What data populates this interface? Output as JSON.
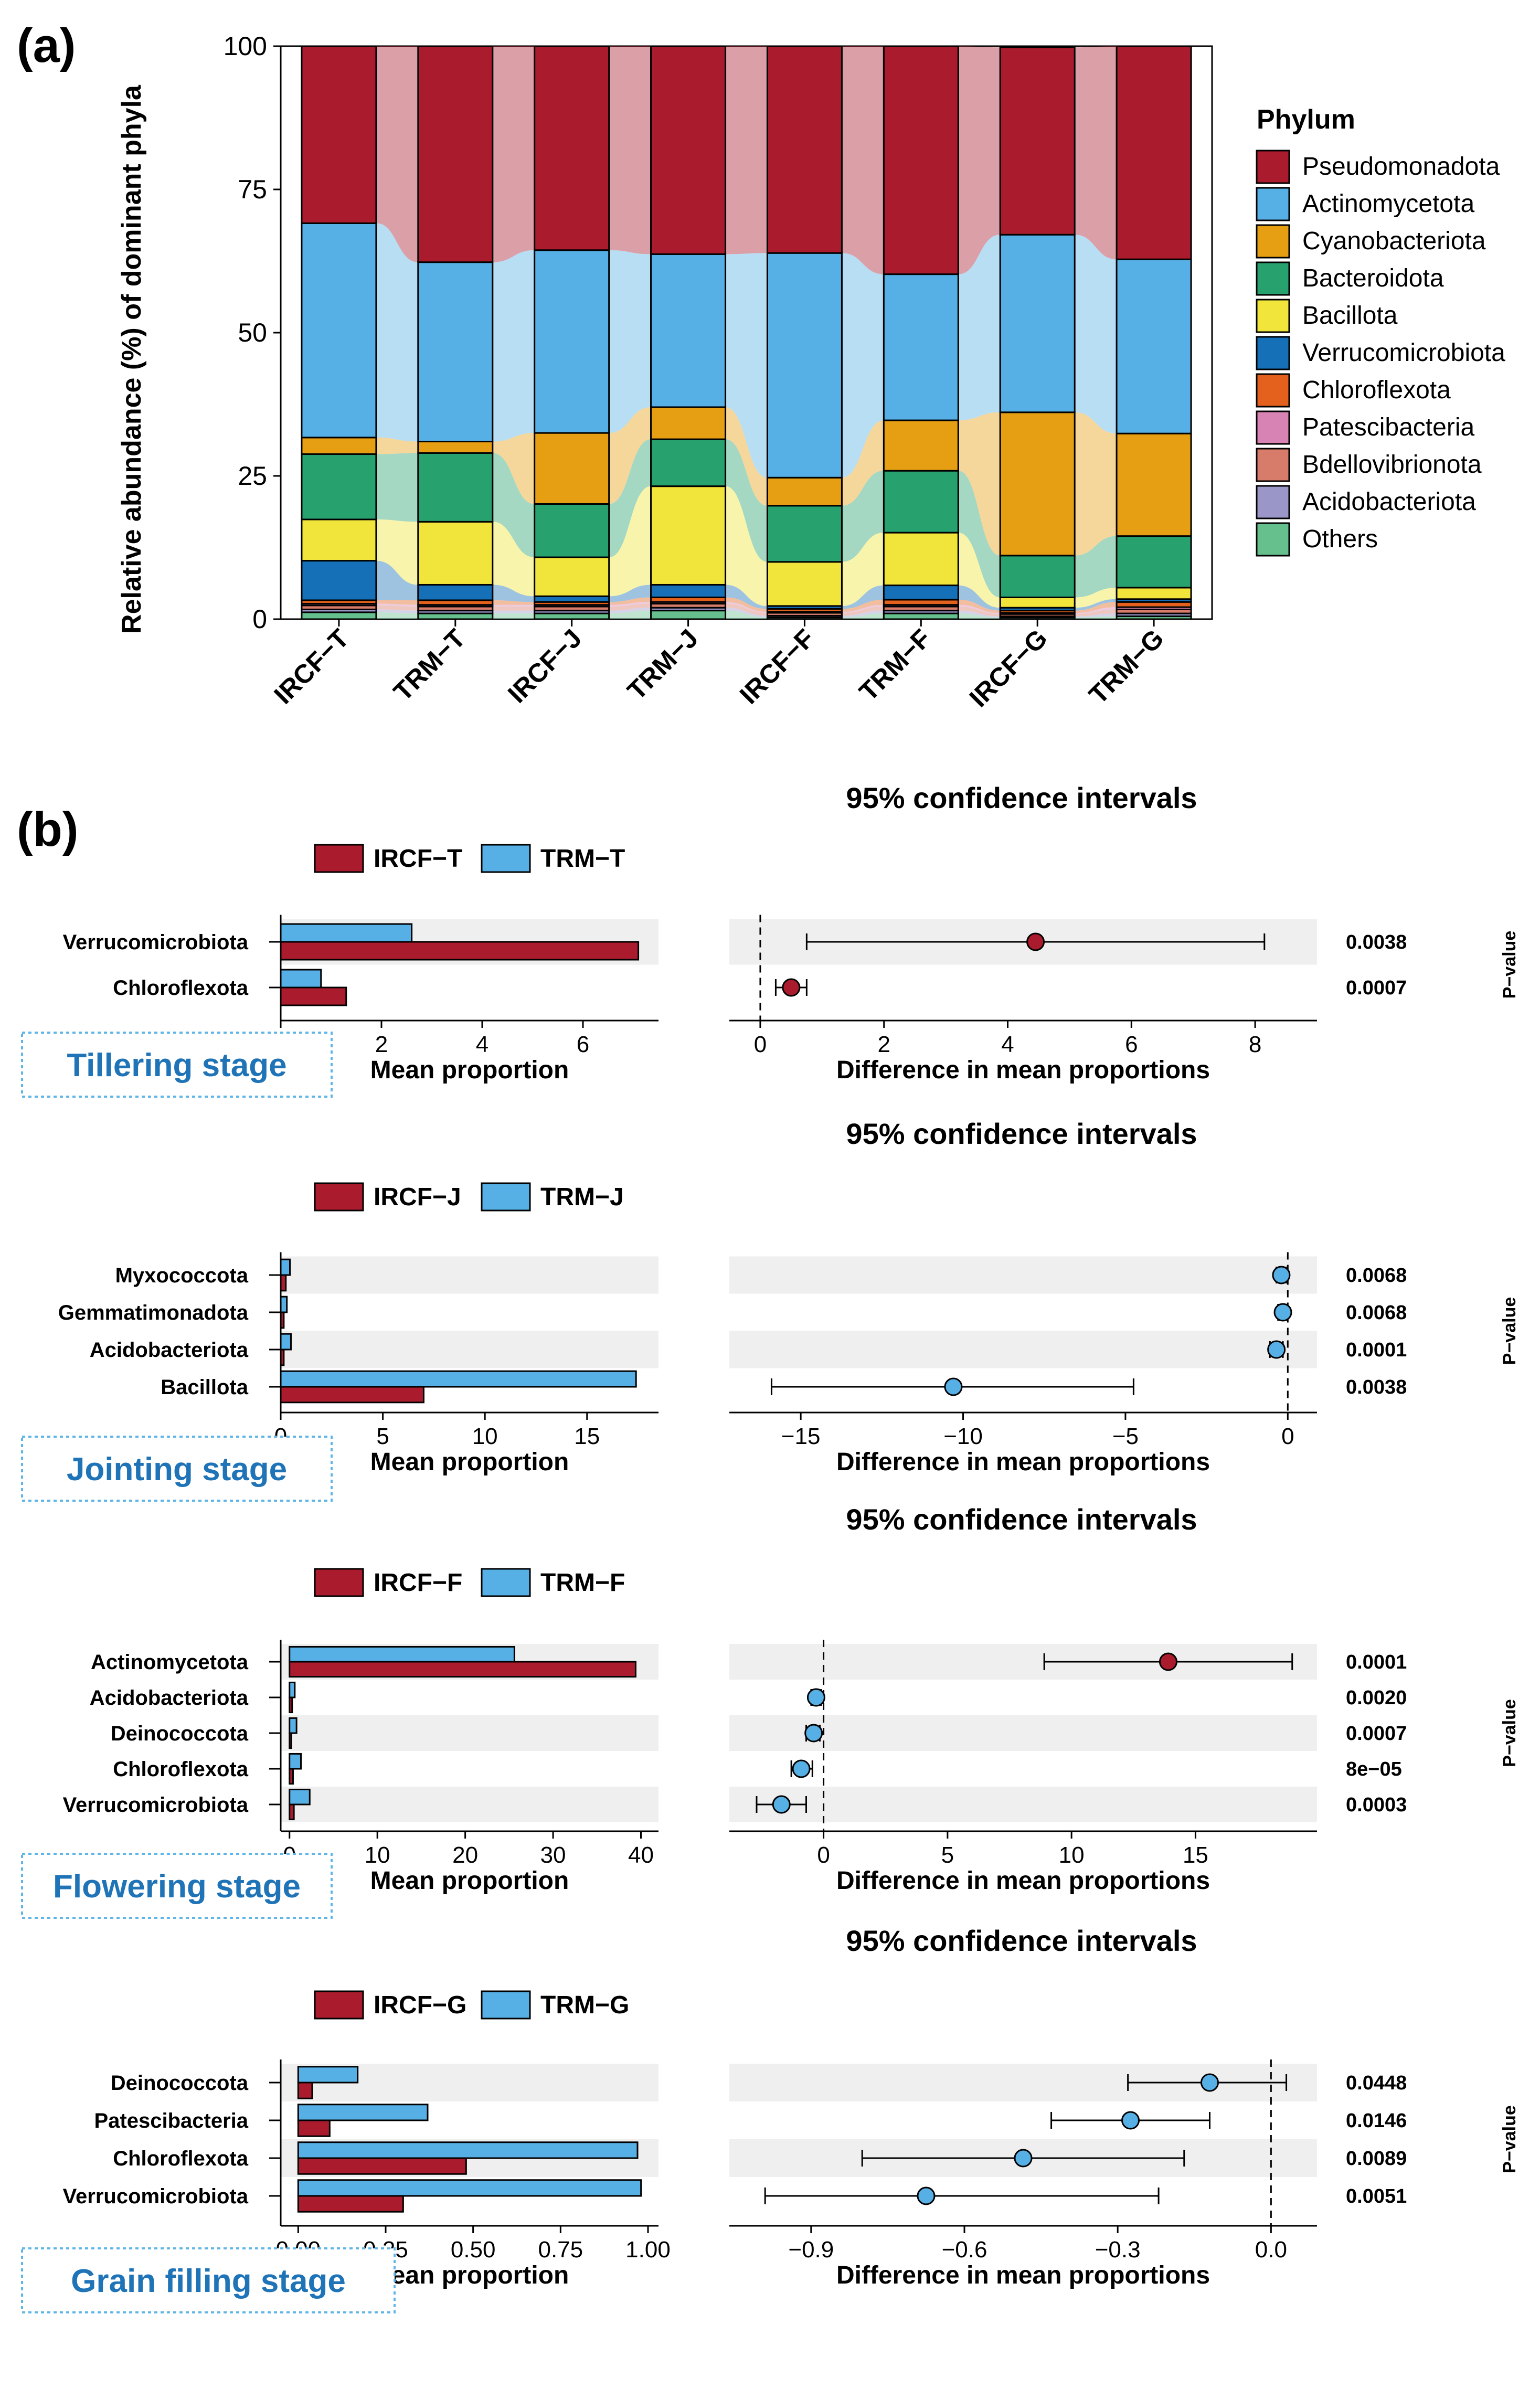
{
  "panel_a": {
    "label": "(a)",
    "legend_title": "Phylum",
    "chart_data": {
      "type": "bar",
      "stacked": true,
      "ylabel": "Relative abundance (%) of dominant phyla",
      "ylim": [
        0,
        100
      ],
      "yticks": [
        "0",
        "25",
        "50",
        "75",
        "100"
      ],
      "categories": [
        "IRCF−T",
        "TRM−T",
        "IRCF−J",
        "TRM−J",
        "IRCF−F",
        "TRM−F",
        "IRCF−G",
        "TRM−G"
      ],
      "series": [
        {
          "name": "Others",
          "color": "#66c08e",
          "values": [
            1.2,
            1.0,
            1.0,
            1.5,
            0.3,
            1.0,
            0.3,
            0.5
          ]
        },
        {
          "name": "Acidobacteriota",
          "color": "#9a96c8",
          "values": [
            0.5,
            0.5,
            0.5,
            0.5,
            0.3,
            0.5,
            0.2,
            0.5
          ]
        },
        {
          "name": "Bdellovibrionota",
          "color": "#d77b6a",
          "values": [
            0.7,
            0.7,
            0.7,
            0.7,
            0.5,
            0.7,
            0.4,
            0.7
          ]
        },
        {
          "name": "Patescibacteria",
          "color": "#d783b3",
          "values": [
            0.3,
            0.3,
            0.3,
            0.3,
            0.2,
            0.3,
            0.2,
            0.4
          ]
        },
        {
          "name": "Chloroflexota",
          "color": "#e3611c",
          "values": [
            0.6,
            0.8,
            0.5,
            0.8,
            0.5,
            0.9,
            0.4,
            0.9
          ]
        },
        {
          "name": "Verrucomicrobiota",
          "color": "#1670b7",
          "values": [
            6.9,
            2.7,
            1.0,
            2.2,
            0.5,
            2.5,
            0.5,
            0.5
          ]
        },
        {
          "name": "Bacillota",
          "color": "#f1e43a",
          "values": [
            7.2,
            11.0,
            6.8,
            17.2,
            7.7,
            9.2,
            1.8,
            2.0
          ]
        },
        {
          "name": "Bacteroidota",
          "color": "#27a16e",
          "values": [
            11.4,
            12.0,
            9.3,
            8.2,
            9.8,
            10.8,
            7.3,
            9.0
          ]
        },
        {
          "name": "Cyanobacteriota",
          "color": "#e69f13",
          "values": [
            2.9,
            2.0,
            12.4,
            5.6,
            4.9,
            8.8,
            25.0,
            17.9
          ]
        },
        {
          "name": "Actinomycetota",
          "color": "#56b0e5",
          "values": [
            37.4,
            31.3,
            31.9,
            26.7,
            39.2,
            25.5,
            31.0,
            30.4
          ]
        },
        {
          "name": "Pseudomonadota",
          "color": "#aa1c2d",
          "values": [
            30.9,
            37.7,
            35.6,
            36.3,
            36.1,
            39.8,
            32.7,
            37.2
          ]
        }
      ],
      "legend_order": [
        "Pseudomonadota",
        "Actinomycetota",
        "Cyanobacteriota",
        "Bacteroidota",
        "Bacillota",
        "Verrucomicrobiota",
        "Chloroflexota",
        "Patescibacteria",
        "Bdellovibrionota",
        "Acidobacteriota",
        "Others"
      ],
      "legend_position": "right"
    }
  },
  "panel_b": {
    "label": "(b)",
    "ci_title": "95% confidence intervals",
    "xlabel_left": "Mean proportion",
    "xlabel_right": "Difference in mean proportions",
    "pvalue_label": "P−value",
    "colors": {
      "group1": "#aa1c2d",
      "group2": "#56b0e5",
      "stage_text": "#1f73b7",
      "stage_border": "#5fb6e6"
    },
    "chart_data": [
      {
        "type": "bar",
        "stage": "Tillering stage",
        "legend": [
          "IRCF−T",
          "TRM−T"
        ],
        "categories": [
          "Verrucomicrobiota",
          "Chloroflexota"
        ],
        "series": [
          {
            "name": "IRCF−T",
            "values": [
              7.1,
              1.3
            ]
          },
          {
            "name": "TRM−T",
            "values": [
              2.6,
              0.8
            ]
          }
        ],
        "xlim_left": [
          0,
          7.5
        ],
        "xticks_left": [
          0,
          2,
          4,
          6
        ],
        "xtick_labels_left": [
          "0",
          "2",
          "4",
          "6"
        ],
        "diff": [
          4.45,
          0.5
        ],
        "ci": [
          [
            0.75,
            8.15
          ],
          [
            0.25,
            0.75
          ]
        ],
        "xlim_right": [
          -0.5,
          9.0
        ],
        "xticks_right": [
          0,
          2,
          4,
          6,
          8
        ],
        "xtick_labels_right": [
          "0",
          "2",
          "4",
          "6",
          "8"
        ],
        "pvalues": [
          "0.0038",
          "0.0007"
        ]
      },
      {
        "type": "bar",
        "stage": "Jointing stage",
        "legend": [
          "IRCF−J",
          "TRM−J"
        ],
        "categories": [
          "Myxococcota",
          "Gemmatimonadota",
          "Acidobacteriota",
          "Bacillota"
        ],
        "series": [
          {
            "name": "IRCF−J",
            "values": [
              0.25,
              0.15,
              0.15,
              7.0
            ]
          },
          {
            "name": "TRM−J",
            "values": [
              0.45,
              0.3,
              0.5,
              17.4
            ]
          }
        ],
        "xlim_left": [
          0,
          18.5
        ],
        "xticks_left": [
          0,
          5,
          10,
          15
        ],
        "xtick_labels_left": [
          "0",
          "5",
          "10",
          "15"
        ],
        "diff": [
          -0.2,
          -0.15,
          -0.35,
          -10.3
        ],
        "ci": [
          [
            -0.35,
            -0.05
          ],
          [
            -0.3,
            -0.05
          ],
          [
            -0.55,
            -0.15
          ],
          [
            -15.9,
            -4.75
          ]
        ],
        "xlim_right": [
          -17.2,
          0.9
        ],
        "xticks_right": [
          -15,
          -10,
          -5,
          0
        ],
        "xtick_labels_right": [
          "−15",
          "−10",
          "−5",
          "0"
        ],
        "pvalues": [
          "0.0068",
          "0.0068",
          "0.0001",
          "0.0038"
        ]
      },
      {
        "type": "bar",
        "stage": "Flowering stage",
        "legend": [
          "IRCF−F",
          "TRM−F"
        ],
        "categories": [
          "Actinomycetota",
          "Acidobacteriota",
          "Deinococcota",
          "Chloroflexota",
          "Verrucomicrobiota"
        ],
        "series": [
          {
            "name": "IRCF−F",
            "values": [
              39.4,
              0.3,
              0.2,
              0.4,
              0.5
            ]
          },
          {
            "name": "TRM−F",
            "values": [
              25.6,
              0.6,
              0.8,
              1.3,
              2.3
            ]
          }
        ],
        "xlim_left": [
          -1,
          42
        ],
        "xticks_left": [
          0,
          10,
          20,
          30,
          40
        ],
        "xtick_labels_left": [
          "0",
          "10",
          "20",
          "30",
          "40"
        ],
        "diff": [
          13.9,
          -0.3,
          -0.4,
          -0.9,
          -1.7
        ],
        "ci": [
          [
            8.9,
            18.9
          ],
          [
            -0.5,
            -0.1
          ],
          [
            -0.7,
            -0.15
          ],
          [
            -1.3,
            -0.45
          ],
          [
            -2.7,
            -0.7
          ]
        ],
        "xlim_right": [
          -3.8,
          19.9
        ],
        "xticks_right": [
          0,
          5,
          10,
          15
        ],
        "xtick_labels_right": [
          "0",
          "5",
          "10",
          "15"
        ],
        "pvalues": [
          "0.0001",
          "0.0020",
          "0.0007",
          "8e−05",
          "0.0003"
        ]
      },
      {
        "type": "bar",
        "stage": "Grain filling stage",
        "legend": [
          "IRCF−G",
          "TRM−G"
        ],
        "categories": [
          "Deinococcota",
          "Patescibacteria",
          "Chloroflexota",
          "Verrucomicrobiota"
        ],
        "series": [
          {
            "name": "IRCF−G",
            "values": [
              0.04,
              0.09,
              0.48,
              0.3
            ]
          },
          {
            "name": "TRM−G",
            "values": [
              0.17,
              0.37,
              0.97,
              0.98
            ]
          }
        ],
        "xlim_left": [
          -0.05,
          1.03
        ],
        "xticks_left": [
          0,
          0.25,
          0.5,
          0.75,
          1.0
        ],
        "xtick_labels_left": [
          "0.00",
          "0.25",
          "0.50",
          "0.75",
          "1.00"
        ],
        "diff": [
          -0.12,
          -0.275,
          -0.485,
          -0.675
        ],
        "ci": [
          [
            -0.28,
            0.03
          ],
          [
            -0.43,
            -0.12
          ],
          [
            -0.8,
            -0.17
          ],
          [
            -0.99,
            -0.22
          ]
        ],
        "xlim_right": [
          -1.06,
          0.09
        ],
        "xticks_right": [
          -0.9,
          -0.6,
          -0.3,
          0.0
        ],
        "xtick_labels_right": [
          "−0.9",
          "−0.6",
          "−0.3",
          "0.0"
        ],
        "pvalues": [
          "0.0448",
          "0.0146",
          "0.0089",
          "0.0051"
        ]
      }
    ]
  }
}
